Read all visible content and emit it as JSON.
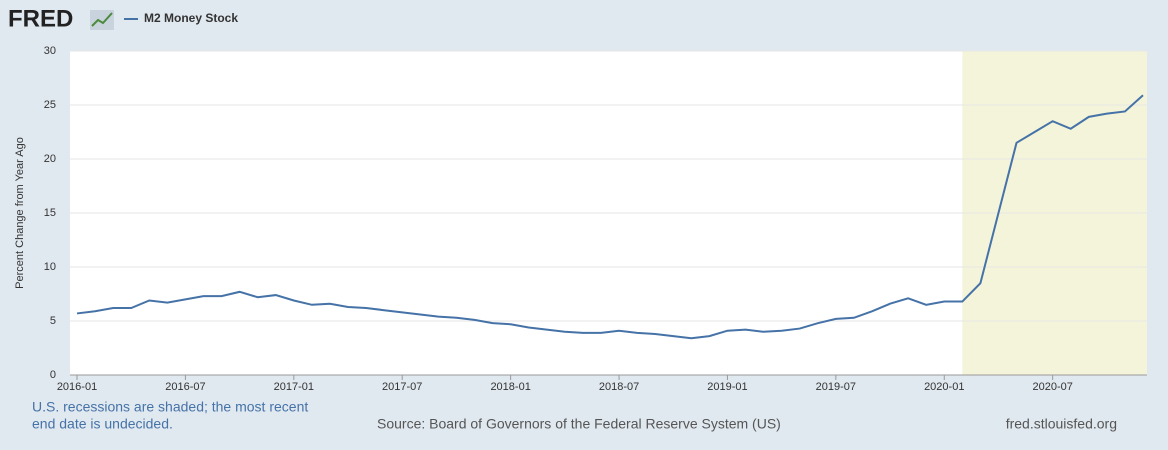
{
  "logo": "FRED",
  "chart_data": {
    "type": "line",
    "series": [
      {
        "name": "M2 Money Stock",
        "color": "#4572a7",
        "values": [
          5.7,
          5.9,
          6.2,
          6.2,
          6.9,
          6.7,
          7.0,
          7.3,
          7.3,
          7.7,
          7.2,
          7.4,
          6.9,
          6.5,
          6.6,
          6.3,
          6.2,
          6.0,
          5.8,
          5.6,
          5.4,
          5.3,
          5.1,
          4.8,
          4.7,
          4.4,
          4.2,
          4.0,
          3.9,
          3.9,
          4.1,
          3.9,
          3.8,
          3.6,
          3.4,
          3.6,
          4.1,
          4.2,
          4.0,
          4.1,
          4.3,
          4.8,
          5.2,
          5.3,
          5.9,
          6.6,
          7.1,
          6.5,
          6.8,
          6.8,
          8.5,
          15.0,
          21.5,
          22.5,
          23.5,
          22.8,
          23.9,
          24.2,
          24.4,
          25.9
        ]
      }
    ],
    "x": [
      "2016-01",
      "2016-02",
      "2016-03",
      "2016-04",
      "2016-05",
      "2016-06",
      "2016-07",
      "2016-08",
      "2016-09",
      "2016-10",
      "2016-11",
      "2016-12",
      "2017-01",
      "2017-02",
      "2017-03",
      "2017-04",
      "2017-05",
      "2017-06",
      "2017-07",
      "2017-08",
      "2017-09",
      "2017-10",
      "2017-11",
      "2017-12",
      "2018-01",
      "2018-02",
      "2018-03",
      "2018-04",
      "2018-05",
      "2018-06",
      "2018-07",
      "2018-08",
      "2018-09",
      "2018-10",
      "2018-11",
      "2018-12",
      "2019-01",
      "2019-02",
      "2019-03",
      "2019-04",
      "2019-05",
      "2019-06",
      "2019-07",
      "2019-08",
      "2019-09",
      "2019-10",
      "2019-11",
      "2019-12",
      "2020-01",
      "2020-02",
      "2020-03",
      "2020-04",
      "2020-05",
      "2020-06",
      "2020-07",
      "2020-08",
      "2020-09",
      "2020-10",
      "2020-11",
      "2020-12"
    ],
    "xlim": [
      "2016-01",
      "2020-12"
    ],
    "xticks": [
      "2016-01",
      "2016-07",
      "2017-01",
      "2017-07",
      "2018-01",
      "2018-07",
      "2019-01",
      "2019-07",
      "2020-01",
      "2020-07"
    ],
    "ylim": [
      0,
      30
    ],
    "yticks": [
      0,
      5,
      10,
      15,
      20,
      25,
      30
    ],
    "grid": true,
    "y_label": "Percent Change from Year Ago",
    "recession_start": "2020-02",
    "note": "U.S. recessions are shaded; the most recent end date is undecided.",
    "source": "Source: Board of Governors of the Federal Reserve System (US)",
    "site": "fred.stlouisfed.org"
  }
}
